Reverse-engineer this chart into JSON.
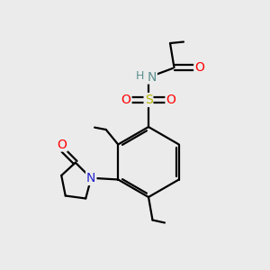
{
  "background_color": "#ebebeb",
  "bond_color": "#000000",
  "atom_colors": {
    "N_amide": "#5b8f8f",
    "N_pyr": "#2222cc",
    "O": "#ff0000",
    "S": "#b8b800",
    "H": "#5b8f8f"
  },
  "figsize": [
    3.0,
    3.0
  ],
  "dpi": 100
}
